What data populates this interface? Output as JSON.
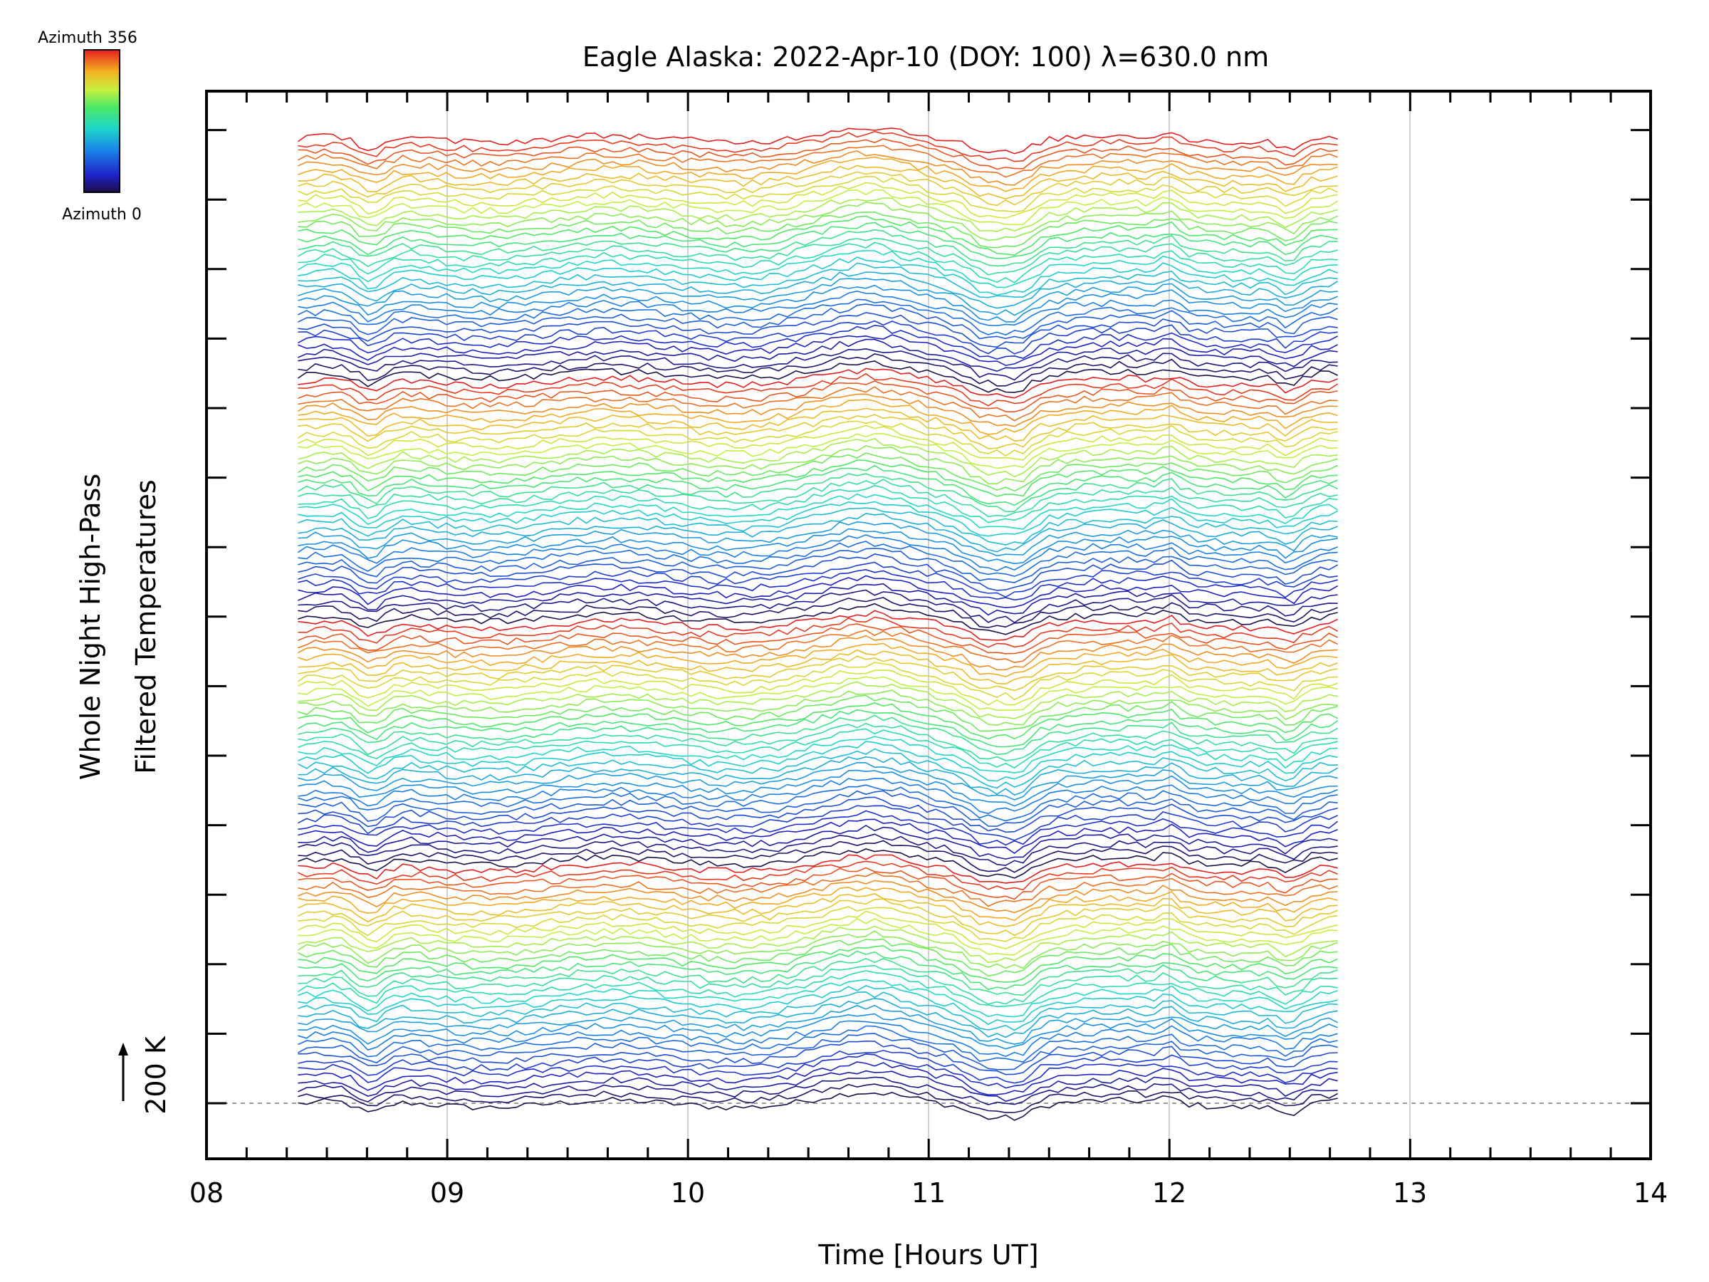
{
  "chart_data": {
    "type": "line",
    "title": "Eagle Alaska: 2022-Apr-10 (DOY: 100) λ=630.0 nm",
    "xlabel": "Time [Hours UT]",
    "ylabel_lines": [
      "Whole Night High-Pass",
      "Filtered Temperatures"
    ],
    "xlim": [
      8,
      14
    ],
    "x_ticks": [
      "08",
      "09",
      "10",
      "11",
      "12",
      "13",
      "14"
    ],
    "x_minor_step": 0.1667,
    "y_major_ticks": 15,
    "scale_marker": {
      "label": "200 K"
    },
    "colorbar": {
      "top_label": "Azimuth 356",
      "bottom_label": "Azimuth 0",
      "colormap": "jet",
      "range": [
        0,
        356
      ]
    },
    "grid": {
      "vertical": [
        9,
        10,
        11,
        12,
        13
      ],
      "color": "#d0d0d0"
    },
    "baseline_dashed": true,
    "series_time_range": [
      8.38,
      12.7
    ],
    "series_count": 144,
    "note_series": "Each stacked trace is one azimuth (0 to 356 deg); colour encodes azimuth; traces are offset vertically."
  }
}
